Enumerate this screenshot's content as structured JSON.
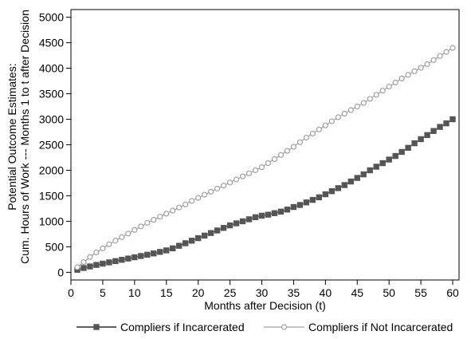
{
  "chart_data": {
    "type": "line",
    "title": "",
    "xlabel": "Months after Decision (t)",
    "ylabel_lines": [
      "Potential Outcome Estimates:",
      "Cum. Hours of Work --- Months 1 to t after Decision"
    ],
    "xlim": [
      0,
      61
    ],
    "ylim": [
      -150,
      5150
    ],
    "xticks": [
      0,
      5,
      10,
      15,
      20,
      25,
      30,
      35,
      40,
      45,
      50,
      55,
      60
    ],
    "yticks": [
      0,
      500,
      1000,
      1500,
      2000,
      2500,
      3000,
      3500,
      4000,
      4500,
      5000
    ],
    "grid": false,
    "legend_position": "bottom",
    "series": [
      {
        "name": "Compliers if Incarcerated",
        "color": "#555555",
        "marker": "square",
        "x": [
          1,
          2,
          3,
          4,
          5,
          6,
          7,
          8,
          9,
          10,
          11,
          12,
          13,
          14,
          15,
          16,
          17,
          18,
          19,
          20,
          21,
          22,
          23,
          24,
          25,
          26,
          27,
          28,
          29,
          30,
          31,
          32,
          33,
          34,
          35,
          36,
          37,
          38,
          39,
          40,
          41,
          42,
          43,
          44,
          45,
          46,
          47,
          48,
          49,
          50,
          51,
          52,
          53,
          54,
          55,
          56,
          57,
          58,
          59,
          60
        ],
        "values": [
          50,
          85,
          115,
          145,
          170,
          195,
          220,
          245,
          270,
          295,
          320,
          345,
          370,
          400,
          430,
          470,
          520,
          570,
          620,
          670,
          720,
          770,
          820,
          870,
          920,
          960,
          1000,
          1040,
          1080,
          1110,
          1130,
          1160,
          1190,
          1230,
          1280,
          1320,
          1370,
          1420,
          1470,
          1530,
          1590,
          1650,
          1710,
          1780,
          1850,
          1920,
          2000,
          2070,
          2140,
          2210,
          2280,
          2360,
          2440,
          2530,
          2610,
          2690,
          2770,
          2850,
          2920,
          3000
        ]
      },
      {
        "name": "Compliers if Not Incarcerated",
        "color": "#a0a0a0",
        "marker": "circle",
        "x": [
          1,
          2,
          3,
          4,
          5,
          6,
          7,
          8,
          9,
          10,
          11,
          12,
          13,
          14,
          15,
          16,
          17,
          18,
          19,
          20,
          21,
          22,
          23,
          24,
          25,
          26,
          27,
          28,
          29,
          30,
          31,
          32,
          33,
          34,
          35,
          36,
          37,
          38,
          39,
          40,
          41,
          42,
          43,
          44,
          45,
          46,
          47,
          48,
          49,
          50,
          51,
          52,
          53,
          54,
          55,
          56,
          57,
          58,
          59,
          60
        ],
        "values": [
          100,
          200,
          300,
          390,
          470,
          550,
          620,
          690,
          760,
          830,
          900,
          970,
          1030,
          1090,
          1150,
          1210,
          1270,
          1330,
          1400,
          1460,
          1520,
          1580,
          1640,
          1700,
          1760,
          1820,
          1880,
          1940,
          2000,
          2060,
          2140,
          2220,
          2300,
          2380,
          2460,
          2550,
          2640,
          2720,
          2800,
          2880,
          2960,
          3040,
          3110,
          3180,
          3250,
          3320,
          3400,
          3480,
          3560,
          3640,
          3720,
          3800,
          3870,
          3940,
          4010,
          4080,
          4160,
          4240,
          4320,
          4400
        ]
      }
    ]
  }
}
